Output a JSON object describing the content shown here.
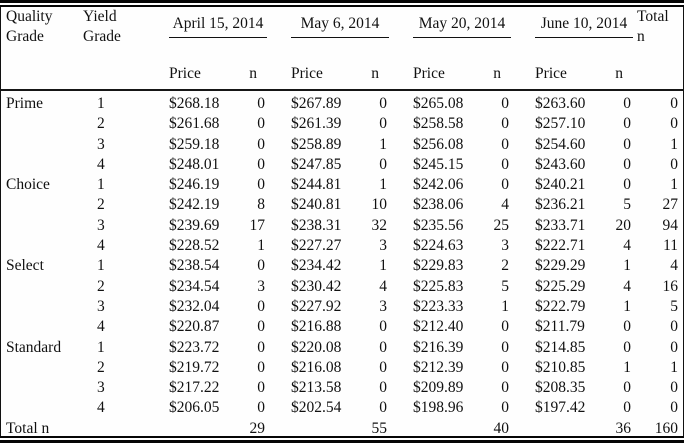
{
  "table": {
    "header": {
      "quality": [
        "Quality",
        "Grade"
      ],
      "yield": [
        "Yield",
        "Grade"
      ],
      "groups": [
        {
          "label": "April 15, 2014",
          "sub": [
            "Price",
            "n"
          ]
        },
        {
          "label": "May 6, 2014",
          "sub": [
            "Price",
            "n"
          ]
        },
        {
          "label": "May 20, 2014",
          "sub": [
            "Price",
            "n"
          ]
        },
        {
          "label": "June 10, 2014",
          "sub": [
            "Price",
            "n"
          ]
        }
      ],
      "total": [
        "Total",
        "n"
      ]
    },
    "rows": [
      {
        "quality": "Prime",
        "yield": "1",
        "prices": [
          "$268.18",
          "$267.89",
          "$265.08",
          "$263.60"
        ],
        "n": [
          "0",
          "0",
          "0",
          "0"
        ],
        "total": "0"
      },
      {
        "quality": "",
        "yield": "2",
        "prices": [
          "$261.68",
          "$261.39",
          "$258.58",
          "$257.10"
        ],
        "n": [
          "0",
          "0",
          "0",
          "0"
        ],
        "total": "0"
      },
      {
        "quality": "",
        "yield": "3",
        "prices": [
          "$259.18",
          "$258.89",
          "$256.08",
          "$254.60"
        ],
        "n": [
          "0",
          "1",
          "0",
          "0"
        ],
        "total": "1"
      },
      {
        "quality": "",
        "yield": "4",
        "prices": [
          "$248.01",
          "$247.85",
          "$245.15",
          "$243.60"
        ],
        "n": [
          "0",
          "0",
          "0",
          "0"
        ],
        "total": "0"
      },
      {
        "quality": "Choice",
        "yield": "1",
        "prices": [
          "$246.19",
          "$244.81",
          "$242.06",
          "$240.21"
        ],
        "n": [
          "0",
          "1",
          "0",
          "0"
        ],
        "total": "1"
      },
      {
        "quality": "",
        "yield": "2",
        "prices": [
          "$242.19",
          "$240.81",
          "$238.06",
          "$236.21"
        ],
        "n": [
          "8",
          "10",
          "4",
          "5"
        ],
        "total": "27"
      },
      {
        "quality": "",
        "yield": "3",
        "prices": [
          "$239.69",
          "$238.31",
          "$235.56",
          "$233.71"
        ],
        "n": [
          "17",
          "32",
          "25",
          "20"
        ],
        "total": "94"
      },
      {
        "quality": "",
        "yield": "4",
        "prices": [
          "$228.52",
          "$227.27",
          "$224.63",
          "$222.71"
        ],
        "n": [
          "1",
          "3",
          "3",
          "4"
        ],
        "total": "11"
      },
      {
        "quality": "Select",
        "yield": "1",
        "prices": [
          "$238.54",
          "$234.42",
          "$229.83",
          "$229.29"
        ],
        "n": [
          "0",
          "1",
          "2",
          "1"
        ],
        "total": "4"
      },
      {
        "quality": "",
        "yield": "2",
        "prices": [
          "$234.54",
          "$230.42",
          "$225.83",
          "$225.29"
        ],
        "n": [
          "3",
          "4",
          "5",
          "4"
        ],
        "total": "16"
      },
      {
        "quality": "",
        "yield": "3",
        "prices": [
          "$232.04",
          "$227.92",
          "$223.33",
          "$222.79"
        ],
        "n": [
          "0",
          "3",
          "1",
          "1"
        ],
        "total": "5"
      },
      {
        "quality": "",
        "yield": "4",
        "prices": [
          "$220.87",
          "$216.88",
          "$212.40",
          "$211.79"
        ],
        "n": [
          "0",
          "0",
          "0",
          "0"
        ],
        "total": "0"
      },
      {
        "quality": "Standard",
        "yield": "1",
        "prices": [
          "$223.72",
          "$220.08",
          "$216.39",
          "$214.85"
        ],
        "n": [
          "0",
          "0",
          "0",
          "0"
        ],
        "total": "0"
      },
      {
        "quality": "",
        "yield": "2",
        "prices": [
          "$219.72",
          "$216.08",
          "$212.39",
          "$210.85"
        ],
        "n": [
          "0",
          "0",
          "0",
          "1"
        ],
        "total": "1"
      },
      {
        "quality": "",
        "yield": "3",
        "prices": [
          "$217.22",
          "$213.58",
          "$209.89",
          "$208.35"
        ],
        "n": [
          "0",
          "0",
          "0",
          "0"
        ],
        "total": "0"
      },
      {
        "quality": "",
        "yield": "4",
        "prices": [
          "$206.05",
          "$202.54",
          "$198.96",
          "$197.42"
        ],
        "n": [
          "0",
          "0",
          "0",
          "0"
        ],
        "total": "0"
      }
    ],
    "total_row": {
      "label": "Total n",
      "n": [
        "29",
        "55",
        "40",
        "36"
      ],
      "total": "160"
    }
  },
  "colors": {
    "text": "#111111",
    "rule": "#050505",
    "background": "#fefefe"
  }
}
